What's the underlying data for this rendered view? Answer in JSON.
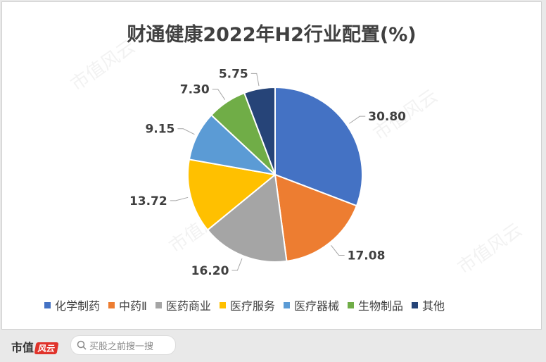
{
  "chart_data": {
    "type": "pie",
    "title": "财通健康2022年H2行业配置(%)",
    "slices": [
      {
        "name": "化学制药",
        "value": 30.8,
        "label": "30.80",
        "color": "#4472c4"
      },
      {
        "name": "中药Ⅱ",
        "value": 17.08,
        "label": "17.08",
        "color": "#ed7d31"
      },
      {
        "name": "医药商业",
        "value": 16.2,
        "label": "16.20",
        "color": "#a5a5a5"
      },
      {
        "name": "医疗服务",
        "value": 13.72,
        "label": "13.72",
        "color": "#ffc000"
      },
      {
        "name": "医疗器械",
        "value": 9.15,
        "label": "9.15",
        "color": "#5b9bd5"
      },
      {
        "name": "生物制品",
        "value": 7.3,
        "label": "7.30",
        "color": "#70ad47"
      },
      {
        "name": "其他",
        "value": 5.75,
        "label": "5.75",
        "color": "#264478"
      }
    ],
    "legend_position": "bottom"
  },
  "watermark": "市值风云",
  "footer": {
    "brand": "市值",
    "brand_mark": "风云",
    "search_placeholder": "买股之前搜一搜"
  }
}
